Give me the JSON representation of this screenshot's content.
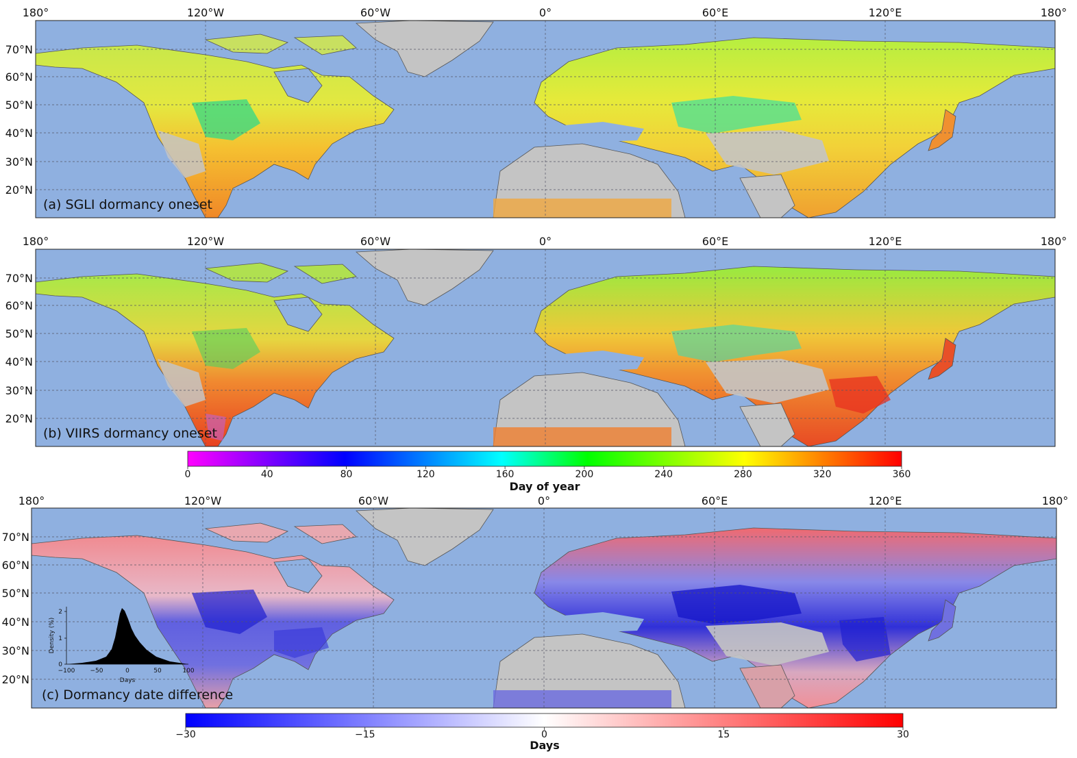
{
  "panels": [
    {
      "id": "a",
      "caption": "(a) SGLI dormancy oneset",
      "lon_labels": [
        "180°",
        "120°W",
        "60°W",
        "0°",
        "60°E",
        "120°E",
        "180°"
      ],
      "lat_labels": [
        "70°N",
        "60°N",
        "50°N",
        "40°N",
        "30°N",
        "20°N"
      ]
    },
    {
      "id": "b",
      "caption": "(b) VIIRS dormancy oneset",
      "lon_labels": [
        "180°",
        "120°W",
        "60°W",
        "0°",
        "60°E",
        "120°E",
        "180°"
      ],
      "lat_labels": [
        "70°N",
        "60°N",
        "50°N",
        "40°N",
        "30°N",
        "20°N"
      ]
    },
    {
      "id": "c",
      "caption": "(c) Dormancy date difference",
      "lon_labels": [
        "180°",
        "120°W",
        "60°W",
        "0°",
        "60°E",
        "120°E",
        "180°"
      ],
      "lat_labels": [
        "70°N",
        "60°N",
        "50°N",
        "40°N",
        "30°N",
        "20°N"
      ]
    }
  ],
  "colorbars": [
    {
      "id": "doy",
      "title": "Day of year",
      "ticks": [
        "0",
        "40",
        "80",
        "120",
        "160",
        "200",
        "240",
        "280",
        "320",
        "360"
      ],
      "colors": [
        "#ff00ff",
        "#0000ff",
        "#00ffff",
        "#00ff00",
        "#ffff00",
        "#ff0000"
      ]
    },
    {
      "id": "days",
      "title": "Days",
      "ticks": [
        "−30",
        "−15",
        "0",
        "15",
        "30"
      ],
      "colors": [
        "#0000ff",
        "#ffffff",
        "#ff0000"
      ]
    }
  ],
  "inset": {
    "ylabel": "Density (%)",
    "xlabel": "Days",
    "xticks": [
      "−100",
      "−50",
      "0",
      "50",
      "100"
    ],
    "yticks": [
      "0",
      "1",
      "2"
    ]
  },
  "colors": {
    "ocean": "#8fb0e0",
    "land_nodata": "#c4c4c4"
  }
}
